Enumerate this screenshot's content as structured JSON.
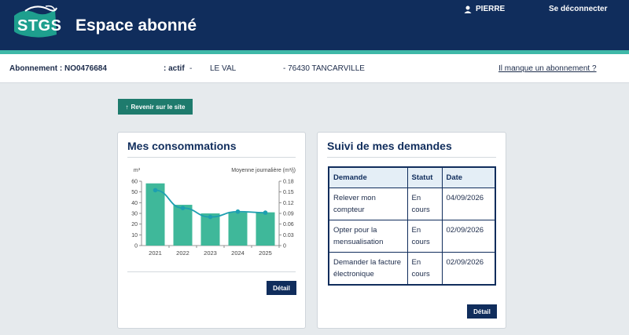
{
  "header": {
    "logo_text": "STGS",
    "title": "Espace abonné",
    "user_name": "PIERRE",
    "logout_label": "Se déconnecter"
  },
  "subscription": {
    "number_label": "Abonnement : NO0476684",
    "status_label": ": actif",
    "status_dash": "-",
    "address": "LE VAL",
    "postal_city": "- 76430 TANCARVILLE",
    "missing_link": "Il manque un abonnement ?"
  },
  "back_button": "Revenir sur le site",
  "consumption_card": {
    "title": "Mes consommations",
    "detail_label": "Détail"
  },
  "requests_card": {
    "title": "Suivi de mes demandes",
    "detail_label": "Détail",
    "columns": [
      "Demande",
      "Statut",
      "Date"
    ],
    "rows": [
      {
        "demande": "Relever mon compteur",
        "statut": "En cours",
        "date": "04/09/2026"
      },
      {
        "demande": "Opter pour la mensualisation",
        "statut": "En cours",
        "date": "02/09/2026"
      },
      {
        "demande": "Demander la facture électronique",
        "statut": "En cours",
        "date": "02/09/2026"
      }
    ]
  },
  "chart_data": {
    "type": "bar",
    "categories": [
      "2021",
      "2022",
      "2023",
      "2024",
      "2025"
    ],
    "series": [
      {
        "values": [
          58,
          38,
          30,
          31,
          31
        ],
        "axis": "left",
        "kind": "bar",
        "color": "#3fb89a"
      },
      {
        "values": [
          0.155,
          0.105,
          0.08,
          0.095,
          0.092
        ],
        "axis": "right",
        "kind": "line",
        "color": "#1d9fb0"
      }
    ],
    "ylabel": "m³",
    "y2label": "Moyenne journalière (m³/j)",
    "ylim": [
      0,
      60
    ],
    "y2lim": [
      0,
      0.18
    ],
    "yticks": [
      "0",
      "10",
      "20",
      "30",
      "40",
      "50",
      "60"
    ],
    "y2ticks": [
      "0",
      "0.03",
      "0.06",
      "0.09",
      "0.12",
      "0.15",
      "0.18"
    ]
  },
  "colors": {
    "header_bg": "#102d5c",
    "accent_teal": "#3fb8a8",
    "back_button": "#1e7b6d",
    "bar": "#3fb89a",
    "line": "#1d9fb0"
  }
}
